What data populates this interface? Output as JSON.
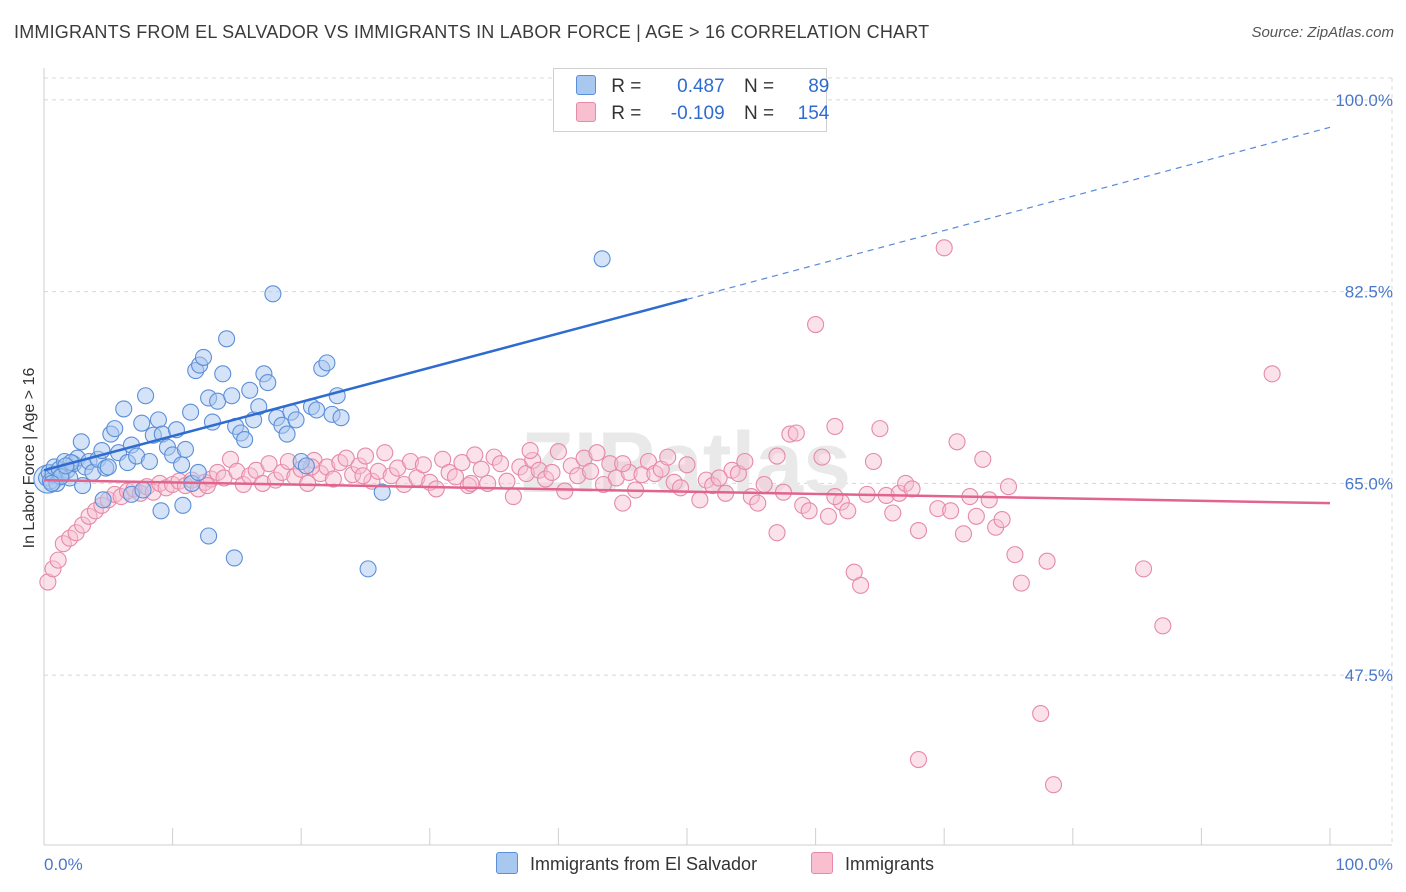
{
  "title": "IMMIGRANTS FROM EL SALVADOR VS IMMIGRANTS IN LABOR FORCE | AGE > 16 CORRELATION CHART",
  "source": "Source: ZipAtlas.com",
  "watermark": "ZIPatlas",
  "colors": {
    "blue_fill": "#a9c8f0",
    "blue_stroke": "#5b8fd8",
    "blue_line": "#2f6ccf",
    "pink_fill": "#f7bfd0",
    "pink_stroke": "#e58aa8",
    "pink_line": "#e0648e",
    "tick_text": "#4a78c8",
    "grid": "#d8d8d8"
  },
  "legend": {
    "rows": [
      {
        "r_label": "R =",
        "r_value": "0.487",
        "n_label": "N =",
        "n_value": "89",
        "series": "blue"
      },
      {
        "r_label": "R =",
        "r_value": "-0.109",
        "n_label": "N =",
        "n_value": "154",
        "series": "pink"
      }
    ]
  },
  "bottom_legend": {
    "items": [
      {
        "label": "Immigrants from El Salvador",
        "series": "blue"
      },
      {
        "label": "Immigrants",
        "series": "pink"
      }
    ]
  },
  "chart_data": {
    "type": "scatter",
    "title": "IMMIGRANTS FROM EL SALVADOR VS IMMIGRANTS IN LABOR FORCE | AGE > 16 CORRELATION CHART",
    "xlabel": "",
    "ylabel": "In Labor Force | Age > 16",
    "xlim": [
      0,
      100
    ],
    "ylim": [
      32,
      102
    ],
    "x_tick_labels": [
      "0.0%",
      "100.0%"
    ],
    "y_ticks": [
      47.5,
      65.0,
      82.5,
      100.0
    ],
    "y_tick_labels": [
      "47.5%",
      "65.0%",
      "82.5%",
      "100.0%"
    ],
    "grid": true,
    "series": [
      {
        "name": "Immigrants from El Salvador",
        "color": "blue",
        "trend": {
          "x0": 0,
          "y0": 66.2,
          "x1": 50,
          "y1": 81.8,
          "dash_to_x": 100,
          "dash_to_y": 97.5
        },
        "points": [
          [
            0.2,
            65.5
          ],
          [
            0.4,
            66.0
          ],
          [
            0.5,
            65.2
          ],
          [
            0.7,
            65.8
          ],
          [
            0.8,
            66.5
          ],
          [
            1.0,
            65.0
          ],
          [
            1.2,
            66.3
          ],
          [
            1.4,
            65.7
          ],
          [
            1.6,
            67.0
          ],
          [
            1.8,
            66.2
          ],
          [
            2.0,
            65.5
          ],
          [
            2.3,
            66.8
          ],
          [
            2.6,
            67.3
          ],
          [
            2.9,
            68.8
          ],
          [
            3.2,
            66.5
          ],
          [
            3.5,
            67.0
          ],
          [
            3.8,
            66.0
          ],
          [
            4.2,
            67.2
          ],
          [
            4.5,
            68.0
          ],
          [
            4.8,
            66.4
          ],
          [
            5.2,
            69.5
          ],
          [
            5.5,
            70.0
          ],
          [
            5.8,
            67.8
          ],
          [
            6.2,
            71.8
          ],
          [
            6.5,
            66.9
          ],
          [
            6.8,
            68.5
          ],
          [
            7.2,
            67.5
          ],
          [
            7.6,
            70.5
          ],
          [
            7.9,
            73.0
          ],
          [
            8.2,
            67.0
          ],
          [
            8.5,
            69.4
          ],
          [
            8.9,
            70.8
          ],
          [
            9.2,
            69.5
          ],
          [
            9.6,
            68.3
          ],
          [
            10.0,
            67.6
          ],
          [
            10.3,
            69.9
          ],
          [
            10.7,
            66.7
          ],
          [
            11.0,
            68.1
          ],
          [
            11.4,
            71.5
          ],
          [
            11.8,
            75.3
          ],
          [
            12.1,
            75.8
          ],
          [
            12.4,
            76.5
          ],
          [
            12.8,
            72.8
          ],
          [
            13.1,
            70.6
          ],
          [
            13.5,
            72.5
          ],
          [
            13.9,
            75.0
          ],
          [
            14.2,
            78.2
          ],
          [
            14.6,
            73.0
          ],
          [
            14.9,
            70.2
          ],
          [
            15.3,
            69.6
          ],
          [
            15.6,
            69.0
          ],
          [
            16.0,
            73.5
          ],
          [
            16.3,
            70.8
          ],
          [
            16.7,
            72.0
          ],
          [
            17.1,
            75.0
          ],
          [
            17.4,
            74.2
          ],
          [
            17.8,
            82.3
          ],
          [
            18.1,
            71.0
          ],
          [
            18.5,
            70.3
          ],
          [
            18.9,
            69.5
          ],
          [
            19.2,
            71.5
          ],
          [
            19.6,
            70.8
          ],
          [
            20.0,
            67.0
          ],
          [
            20.4,
            66.6
          ],
          [
            20.8,
            72.0
          ],
          [
            21.2,
            71.7
          ],
          [
            21.6,
            75.5
          ],
          [
            22.0,
            76.0
          ],
          [
            22.4,
            71.3
          ],
          [
            22.8,
            73.0
          ],
          [
            23.1,
            71.0
          ],
          [
            25.2,
            57.2
          ],
          [
            26.3,
            64.2
          ],
          [
            43.4,
            85.5
          ],
          [
            14.8,
            58.2
          ],
          [
            12.8,
            60.2
          ],
          [
            10.8,
            63.0
          ],
          [
            9.1,
            62.5
          ],
          [
            6.8,
            64.0
          ],
          [
            4.6,
            63.5
          ],
          [
            3.0,
            64.8
          ],
          [
            2.1,
            66.9
          ],
          [
            1.3,
            65.6
          ],
          [
            0.6,
            65.0
          ],
          [
            1.7,
            66.6
          ],
          [
            5.0,
            66.5
          ],
          [
            7.7,
            64.4
          ],
          [
            11.5,
            65.0
          ],
          [
            12.0,
            66.0
          ]
        ]
      },
      {
        "name": "Immigrants",
        "color": "pink",
        "trend": {
          "x0": 0,
          "y0": 65.3,
          "x1": 100,
          "y1": 63.2
        },
        "points": [
          [
            0.3,
            56.0
          ],
          [
            0.7,
            57.2
          ],
          [
            1.1,
            58.0
          ],
          [
            1.5,
            59.5
          ],
          [
            2.0,
            60.0
          ],
          [
            2.5,
            60.5
          ],
          [
            3.0,
            61.2
          ],
          [
            3.5,
            62.0
          ],
          [
            4.0,
            62.5
          ],
          [
            4.5,
            63.0
          ],
          [
            5.0,
            63.5
          ],
          [
            5.5,
            64.0
          ],
          [
            6.0,
            63.8
          ],
          [
            6.5,
            64.3
          ],
          [
            7.0,
            64.5
          ],
          [
            7.5,
            64.1
          ],
          [
            8.0,
            64.7
          ],
          [
            8.5,
            64.2
          ],
          [
            9.0,
            65.0
          ],
          [
            9.5,
            64.6
          ],
          [
            10.0,
            64.9
          ],
          [
            10.5,
            65.2
          ],
          [
            11.0,
            64.8
          ],
          [
            11.5,
            65.3
          ],
          [
            12.0,
            64.5
          ],
          [
            12.5,
            65.1
          ],
          [
            13.0,
            65.4
          ],
          [
            13.5,
            66.0
          ],
          [
            14.0,
            65.5
          ],
          [
            14.5,
            67.2
          ],
          [
            15.0,
            66.1
          ],
          [
            15.5,
            64.9
          ],
          [
            16.0,
            65.7
          ],
          [
            16.5,
            66.2
          ],
          [
            17.0,
            65.0
          ],
          [
            17.5,
            66.8
          ],
          [
            18.0,
            65.3
          ],
          [
            18.5,
            66.0
          ],
          [
            19.0,
            67.0
          ],
          [
            19.5,
            65.6
          ],
          [
            20.0,
            66.3
          ],
          [
            20.5,
            65.0
          ],
          [
            21.0,
            67.1
          ],
          [
            21.5,
            65.9
          ],
          [
            22.0,
            66.5
          ],
          [
            22.5,
            65.4
          ],
          [
            23.0,
            66.9
          ],
          [
            23.5,
            67.3
          ],
          [
            24.0,
            65.8
          ],
          [
            24.5,
            66.6
          ],
          [
            25.0,
            67.5
          ],
          [
            25.5,
            65.2
          ],
          [
            26.0,
            66.1
          ],
          [
            26.5,
            67.8
          ],
          [
            27.0,
            65.7
          ],
          [
            27.5,
            66.4
          ],
          [
            28.0,
            64.9
          ],
          [
            28.5,
            67.0
          ],
          [
            29.0,
            65.5
          ],
          [
            29.5,
            66.7
          ],
          [
            30.0,
            65.1
          ],
          [
            30.5,
            64.5
          ],
          [
            31.0,
            67.2
          ],
          [
            31.5,
            66.0
          ],
          [
            32.0,
            65.6
          ],
          [
            32.5,
            66.9
          ],
          [
            33.0,
            64.8
          ],
          [
            33.5,
            67.6
          ],
          [
            34.0,
            66.3
          ],
          [
            34.5,
            65.0
          ],
          [
            35.0,
            67.4
          ],
          [
            35.5,
            66.8
          ],
          [
            36.0,
            65.2
          ],
          [
            36.5,
            63.8
          ],
          [
            37.0,
            66.5
          ],
          [
            37.5,
            65.9
          ],
          [
            38.0,
            67.1
          ],
          [
            38.5,
            66.2
          ],
          [
            39.0,
            65.4
          ],
          [
            39.5,
            66.0
          ],
          [
            40.0,
            67.9
          ],
          [
            40.5,
            64.3
          ],
          [
            41.0,
            66.6
          ],
          [
            41.5,
            65.7
          ],
          [
            42.0,
            67.3
          ],
          [
            42.5,
            66.1
          ],
          [
            43.0,
            67.8
          ],
          [
            43.5,
            64.9
          ],
          [
            44.0,
            66.8
          ],
          [
            44.5,
            65.5
          ],
          [
            45.0,
            63.2
          ],
          [
            45.5,
            66.0
          ],
          [
            46.0,
            64.4
          ],
          [
            46.5,
            65.8
          ],
          [
            47.0,
            67.0
          ],
          [
            47.5,
            65.9
          ],
          [
            48.0,
            66.3
          ],
          [
            48.5,
            67.4
          ],
          [
            49.0,
            65.1
          ],
          [
            49.5,
            64.6
          ],
          [
            50.0,
            66.7
          ],
          [
            51.0,
            63.5
          ],
          [
            51.5,
            65.3
          ],
          [
            52.0,
            64.8
          ],
          [
            53.0,
            64.1
          ],
          [
            53.5,
            66.2
          ],
          [
            54.0,
            65.9
          ],
          [
            54.5,
            67.0
          ],
          [
            55.0,
            63.8
          ],
          [
            55.5,
            63.2
          ],
          [
            56.0,
            64.9
          ],
          [
            57.0,
            60.5
          ],
          [
            57.5,
            64.2
          ],
          [
            58.0,
            69.5
          ],
          [
            58.5,
            69.6
          ],
          [
            59.0,
            63.0
          ],
          [
            59.5,
            62.5
          ],
          [
            60.0,
            79.5
          ],
          [
            60.5,
            67.4
          ],
          [
            61.0,
            62.0
          ],
          [
            61.5,
            70.2
          ],
          [
            62.0,
            63.3
          ],
          [
            62.5,
            62.5
          ],
          [
            63.0,
            56.9
          ],
          [
            63.5,
            55.7
          ],
          [
            64.0,
            64.0
          ],
          [
            64.5,
            67.0
          ],
          [
            65.0,
            70.0
          ],
          [
            65.5,
            63.9
          ],
          [
            66.0,
            62.3
          ],
          [
            66.5,
            64.1
          ],
          [
            67.0,
            65.0
          ],
          [
            67.5,
            64.5
          ],
          [
            68.0,
            60.7
          ],
          [
            69.5,
            62.7
          ],
          [
            70.0,
            86.5
          ],
          [
            70.5,
            62.5
          ],
          [
            71.0,
            68.8
          ],
          [
            71.5,
            60.4
          ],
          [
            72.0,
            63.8
          ],
          [
            72.5,
            62.0
          ],
          [
            73.0,
            67.2
          ],
          [
            74.0,
            61.0
          ],
          [
            74.5,
            61.7
          ],
          [
            75.0,
            64.7
          ],
          [
            75.5,
            58.5
          ],
          [
            76.0,
            55.9
          ],
          [
            77.5,
            44.0
          ],
          [
            78.0,
            57.9
          ],
          [
            78.5,
            37.5
          ],
          [
            68.0,
            39.8
          ],
          [
            85.5,
            57.2
          ],
          [
            87.0,
            52.0
          ],
          [
            95.5,
            75.0
          ],
          [
            73.5,
            63.5
          ],
          [
            52.5,
            65.5
          ],
          [
            37.8,
            68.0
          ],
          [
            45.0,
            66.8
          ],
          [
            57.0,
            67.5
          ],
          [
            61.5,
            63.8
          ],
          [
            20.8,
            66.5
          ],
          [
            33.2,
            65.0
          ],
          [
            24.8,
            65.7
          ],
          [
            12.7,
            64.8
          ]
        ]
      }
    ]
  }
}
